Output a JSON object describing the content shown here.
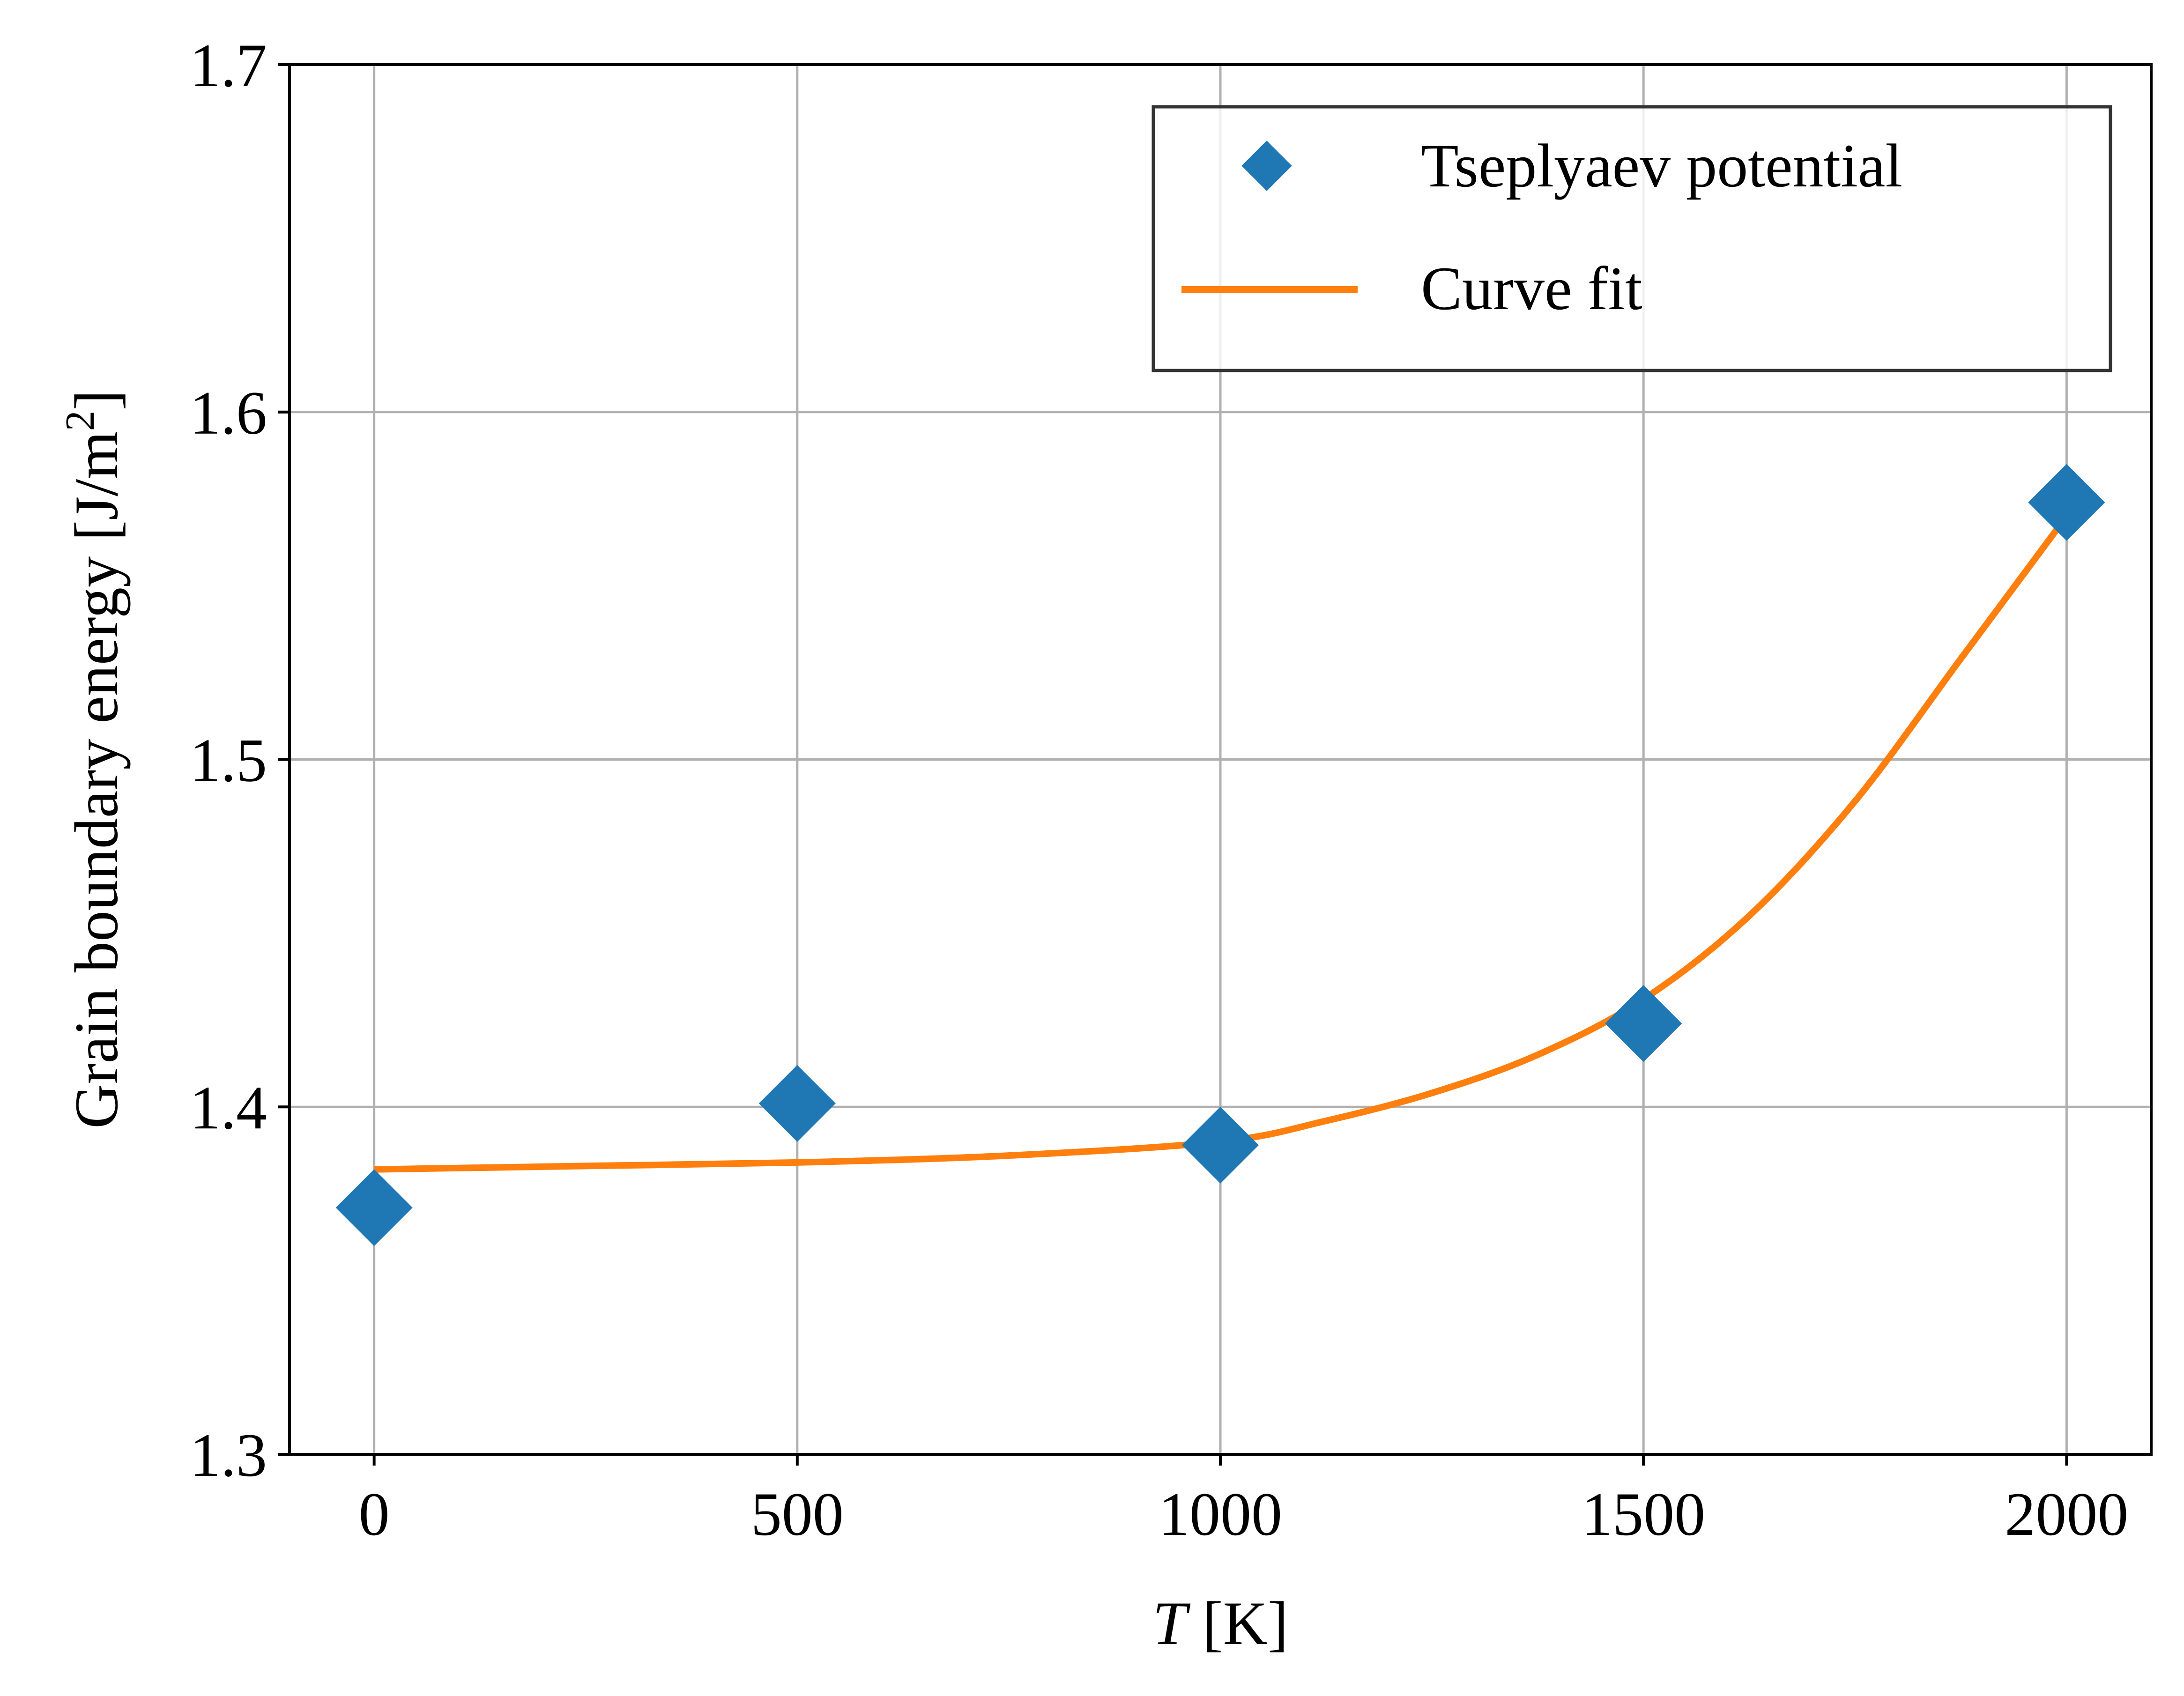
{
  "chart_data": {
    "type": "scatter",
    "xlabel_italic": "T",
    "xlabel_rest": " [K]",
    "ylabel": "Grain boundary energy [J/m",
    "ylabel_sup": "2",
    "ylabel_close": "]",
    "xlim": [
      -100,
      2100
    ],
    "ylim": [
      1.3,
      1.7
    ],
    "xticks": [
      0,
      500,
      1000,
      1500,
      2000
    ],
    "xtick_labels": [
      "0",
      "500",
      "1000",
      "1500",
      "2000"
    ],
    "yticks": [
      1.3,
      1.4,
      1.5,
      1.6,
      1.7
    ],
    "ytick_labels": [
      "1.3",
      "1.4",
      "1.5",
      "1.6",
      "1.7"
    ],
    "grid": true,
    "legend_position": "top-right",
    "series": [
      {
        "name": "Tseplyaev potential",
        "kind": "scatter",
        "marker": "diamond",
        "color": "#1f77b4",
        "x": [
          0,
          500,
          1000,
          1500,
          2000
        ],
        "y": [
          1.371,
          1.401,
          1.389,
          1.424,
          1.574
        ]
      },
      {
        "name": "Curve fit",
        "kind": "line",
        "color": "#ff7f0e",
        "x": [
          0,
          250,
          500,
          750,
          1000,
          1125,
          1250,
          1375,
          1500,
          1625,
          1750,
          1875,
          2000
        ],
        "y": [
          1.382,
          1.383,
          1.384,
          1.386,
          1.39,
          1.396,
          1.404,
          1.415,
          1.431,
          1.455,
          1.488,
          1.529,
          1.57
        ]
      }
    ]
  }
}
